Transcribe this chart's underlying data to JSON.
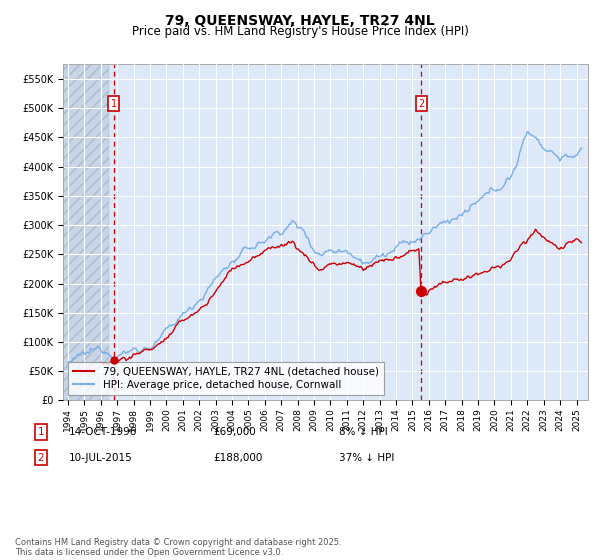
{
  "title": "79, QUEENSWAY, HAYLE, TR27 4NL",
  "subtitle": "Price paid vs. HM Land Registry's House Price Index (HPI)",
  "ylabel_values": [
    "£0",
    "£50K",
    "£100K",
    "£150K",
    "£200K",
    "£250K",
    "£300K",
    "£350K",
    "£400K",
    "£450K",
    "£500K",
    "£550K"
  ],
  "y_ticks": [
    0,
    50000,
    100000,
    150000,
    200000,
    250000,
    300000,
    350000,
    400000,
    450000,
    500000,
    550000
  ],
  "ylim": [
    0,
    575000
  ],
  "xlim_start": 1993.7,
  "xlim_end": 2025.7,
  "hpi_color": "#7aaee8",
  "price_color": "#cc0000",
  "vline_color": "#cc0000",
  "bg_chart": "#dde8f8",
  "bg_hatch_color": "#c8d4e8",
  "grid_color": "#ffffff",
  "legend_label_price": "79, QUEENSWAY, HAYLE, TR27 4NL (detached house)",
  "legend_label_hpi": "HPI: Average price, detached house, Cornwall",
  "transaction1_date": "14-OCT-1996",
  "transaction1_price": "£69,000",
  "transaction1_pct": "8% ↓ HPI",
  "transaction1_x": 1996.79,
  "transaction1_y": 69000,
  "transaction2_date": "10-JUL-2015",
  "transaction2_price": "£188,000",
  "transaction2_pct": "37% ↓ HPI",
  "transaction2_x": 2015.53,
  "transaction2_y": 188000,
  "footer": "Contains HM Land Registry data © Crown copyright and database right 2025.\nThis data is licensed under the Open Government Licence v3.0.",
  "title_fontsize": 10,
  "subtitle_fontsize": 8.5,
  "tick_fontsize": 7,
  "legend_fontsize": 7.5
}
